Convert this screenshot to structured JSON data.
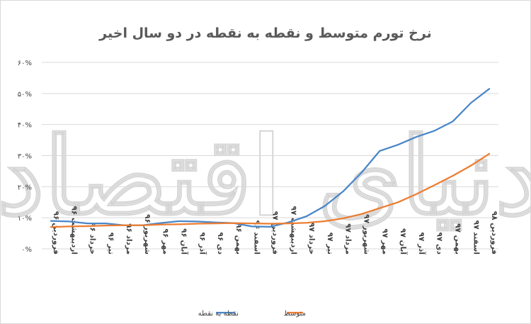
{
  "chart_data": {
    "type": "line",
    "title": "نرخ تورم متوسط و نقطه به نقطه در دو سال اخیر",
    "xlabel": "",
    "ylabel": "",
    "ylim": [
      0,
      60
    ],
    "grid": true,
    "legend_position": "bottom",
    "y_ticks": [
      {
        "value": 0,
        "label": "۰%"
      },
      {
        "value": 10,
        "label": "۱۰%"
      },
      {
        "value": 20,
        "label": "۲۰%"
      },
      {
        "value": 30,
        "label": "۳۰%"
      },
      {
        "value": 40,
        "label": "۴۰%"
      },
      {
        "value": 50,
        "label": "۵۰%"
      },
      {
        "value": 60,
        "label": "۶۰%"
      }
    ],
    "categories": [
      "فروردین ۹۶",
      "اردیبهشت ۹۶",
      "خرداد ۹۶",
      "تیر ۹۶",
      "مرداد ۹۶",
      "شهریور ۹۶",
      "مهر ۹۶",
      "آبان ۹۶",
      "آذر ۹۶",
      "دی ۹۶",
      "بهمن ۹۶",
      "اسفند ۹۶",
      "فروردین ۹۷",
      "اردیبهشت ۹۷",
      "خرداد ۹۷",
      "تیر ۹۷",
      "مرداد ۹۷",
      "شهریور ۹۷",
      "مهر ۹۷",
      "آبان ۹۷",
      "آذر ۹۷",
      "دی ۹۷",
      "بهمن ۹۷",
      "اسفند ۹۷",
      "فروردین ۹۸"
    ],
    "series": [
      {
        "name": "نقطه به نقطه",
        "color": "#4a86c8",
        "values": [
          9.0,
          8.8,
          8.2,
          8.2,
          7.6,
          7.6,
          8.3,
          8.9,
          8.8,
          8.5,
          8.3,
          7.2,
          7.1,
          8.5,
          10.5,
          13.8,
          18.5,
          24.5,
          31.5,
          33.5,
          36.0,
          38.0,
          41.0,
          47.0,
          51.5
        ]
      },
      {
        "name": "متوسط",
        "color": "#ed7d31",
        "values": [
          7.0,
          7.2,
          7.3,
          7.5,
          7.6,
          7.6,
          7.8,
          7.9,
          8.1,
          8.2,
          8.3,
          8.2,
          8.1,
          8.2,
          8.4,
          8.9,
          9.8,
          11.2,
          13.1,
          15.0,
          17.6,
          20.5,
          23.5,
          26.8,
          30.6
        ]
      }
    ]
  },
  "watermark": "دنیای اقتصاد"
}
